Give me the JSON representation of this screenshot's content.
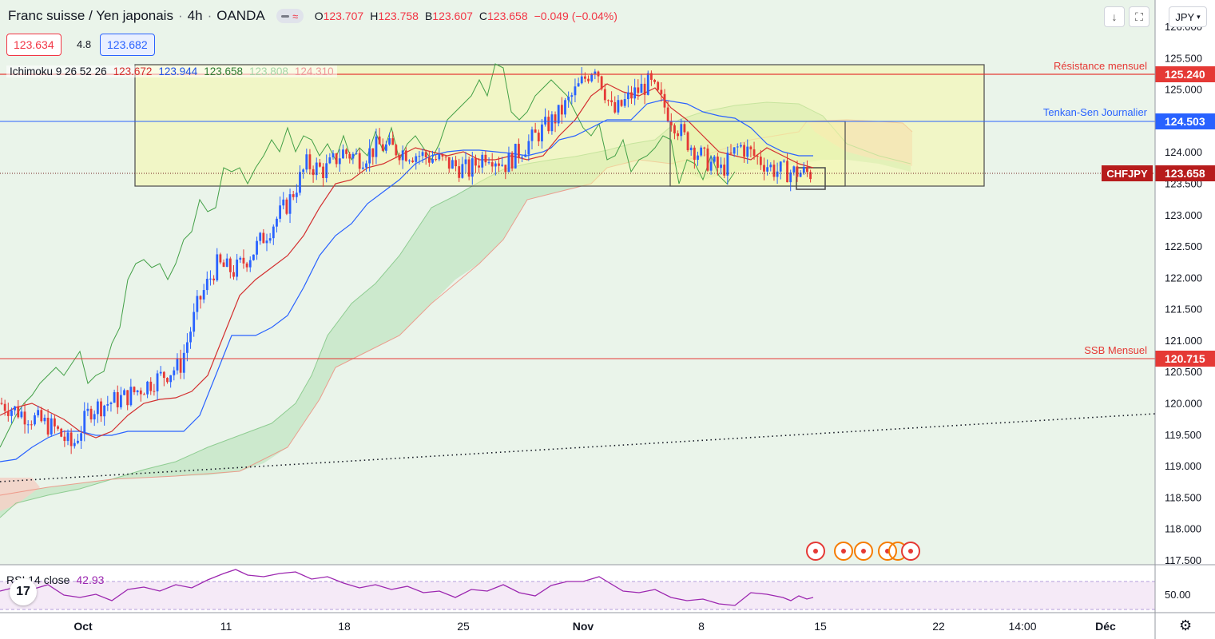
{
  "header": {
    "symbol": "Franc suisse / Yen japonais",
    "sep": "·",
    "interval": "4h",
    "exchange": "OANDA",
    "pill_glyph": "≈",
    "ohlc": [
      {
        "k": "O",
        "v": "123.707"
      },
      {
        "k": "H",
        "v": "123.758"
      },
      {
        "k": "B",
        "v": "123.607"
      },
      {
        "k": "C",
        "v": "123.658"
      },
      {
        "k": "",
        "v": "−0.049 (−0.04%)"
      }
    ]
  },
  "quote": {
    "bid": "123.634",
    "spread": "4.8",
    "ask": "123.682"
  },
  "indicator": {
    "name": "Ichimoku 9 26 52 26",
    "values": [
      {
        "v": "123.672",
        "color": "#d32f2f"
      },
      {
        "v": "123.944",
        "color": "#1e53e5"
      },
      {
        "v": "123.658",
        "color": "#2e7d32"
      },
      {
        "v": "123.808",
        "color": "#a5d6a7"
      },
      {
        "v": "124.310",
        "color": "#ef9a9a"
      }
    ]
  },
  "rsi": {
    "name": "RSI 14 close",
    "value": "42.93",
    "axis_label": "50.00"
  },
  "toolbar": {
    "down_icon": "arrow-down-icon",
    "fit_icon": "fit-screen-icon",
    "currency": "JPY",
    "currency_icon": "chevron-down-icon"
  },
  "logo_text": "17",
  "settings_icon": "gear-icon",
  "colors": {
    "up": "#2962ff",
    "down": "#e53935",
    "resistance": "#e53935",
    "tenkan": "#2962ff",
    "last": "#b71c1c",
    "cloud_bull": "#c8e6c9",
    "cloud_bear": "#f5d0c8",
    "box": "#f5f7b2",
    "rsi": "#9c27b0",
    "events": "#f57c00"
  },
  "chart_data": {
    "type": "candlestick",
    "symbol": "CHFJPY",
    "y_axis": {
      "min": 117.5,
      "max": 126.0,
      "ticks": [
        "126.000",
        "125.500",
        "125.000",
        "124.000",
        "123.500",
        "123.000",
        "122.500",
        "122.000",
        "121.500",
        "121.000",
        "120.500",
        "120.000",
        "119.500",
        "119.000",
        "118.500",
        "118.000",
        "117.500"
      ]
    },
    "x_axis": {
      "ticks": [
        "Oct",
        "11",
        "18",
        "25",
        "Nov",
        "8",
        "15",
        "22",
        "14:00",
        "Déc"
      ]
    },
    "levels": [
      {
        "label": "Résistance mensuel",
        "value": 125.24,
        "text": "125.240",
        "color": "#e53935"
      },
      {
        "label": "Tenkan-Sen Journalier",
        "value": 124.503,
        "text": "124.503",
        "color": "#2962ff"
      },
      {
        "label": "SSB Mensuel",
        "value": 120.715,
        "text": "120.715",
        "color": "#e53935"
      },
      {
        "label": "CHFJPY",
        "value": 123.658,
        "text": "123.658",
        "color": "#b71c1c"
      }
    ],
    "price_path": [
      [
        "2021-10-01",
        120.0
      ],
      [
        "2021-10-04",
        119.6
      ],
      [
        "2021-10-05",
        119.3
      ],
      [
        "2021-10-06",
        119.9
      ],
      [
        "2021-10-07",
        120.0
      ],
      [
        "2021-10-08",
        120.1
      ],
      [
        "2021-10-11",
        120.6
      ],
      [
        "2021-10-12",
        121.6
      ],
      [
        "2021-10-13",
        122.2
      ],
      [
        "2021-10-14",
        122.1
      ],
      [
        "2021-10-15",
        122.4
      ],
      [
        "2021-10-17",
        123.2
      ],
      [
        "2021-10-18",
        123.8
      ],
      [
        "2021-10-19",
        123.7
      ],
      [
        "2021-10-20",
        124.0
      ],
      [
        "2021-10-21",
        123.9
      ],
      [
        "2021-10-22",
        124.1
      ],
      [
        "2021-10-25",
        123.9
      ],
      [
        "2021-10-26",
        123.8
      ],
      [
        "2021-10-27",
        123.7
      ],
      [
        "2021-10-28",
        124.0
      ],
      [
        "2021-10-29",
        123.8
      ],
      [
        "2021-11-01",
        124.6
      ],
      [
        "2021-11-02",
        125.0
      ],
      [
        "2021-11-03",
        125.4
      ],
      [
        "2021-11-04",
        124.6
      ],
      [
        "2021-11-05",
        124.9
      ],
      [
        "2021-11-06",
        125.1
      ],
      [
        "2021-11-08",
        124.2
      ],
      [
        "2021-11-09",
        123.9
      ],
      [
        "2021-11-10",
        123.7
      ],
      [
        "2021-11-11",
        124.1
      ],
      [
        "2021-11-12",
        123.9
      ],
      [
        "2021-11-13",
        123.7
      ],
      [
        "2021-11-15",
        123.66
      ]
    ],
    "rsi_value": 42.93
  }
}
